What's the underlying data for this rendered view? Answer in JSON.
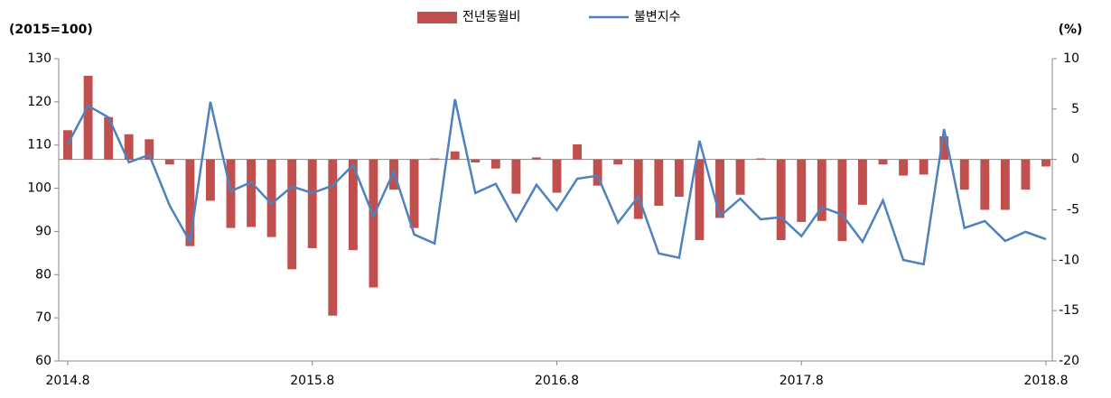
{
  "chart_data": {
    "type": "bar_line",
    "y_label": "(2015=100)",
    "y2_label": "(%)",
    "categories": [
      "2014.8",
      null,
      null,
      null,
      null,
      null,
      null,
      null,
      null,
      null,
      null,
      null,
      "2015.8",
      null,
      null,
      null,
      null,
      null,
      null,
      null,
      null,
      null,
      null,
      null,
      "2016.8",
      null,
      null,
      null,
      null,
      null,
      null,
      null,
      null,
      null,
      null,
      null,
      "2017.8",
      null,
      null,
      null,
      null,
      null,
      null,
      null,
      null,
      null,
      null,
      null,
      "2018.8"
    ],
    "series": [
      {
        "name": "전년동월비",
        "type": "bar",
        "axis": "y2",
        "color": "#c0504d",
        "values": [
          2.9,
          8.3,
          4.2,
          2.5,
          2.0,
          -0.5,
          -8.6,
          -4.1,
          -6.8,
          -6.7,
          -7.7,
          -10.9,
          -8.8,
          -15.5,
          -9.0,
          -12.7,
          -3.0,
          -6.8,
          0.1,
          0.8,
          -0.3,
          -0.9,
          -3.4,
          0.2,
          -3.3,
          1.5,
          -2.6,
          -0.5,
          -5.9,
          -4.6,
          -3.7,
          -8.0,
          -5.8,
          -3.5,
          0.1,
          -8.0,
          -6.2,
          -6.1,
          -8.1,
          -4.5,
          -0.5,
          -1.6,
          -1.5,
          2.3,
          -3.0,
          -5.0,
          -5.0,
          -3.0,
          -0.7
        ]
      },
      {
        "name": "불변지수",
        "type": "line",
        "axis": "y",
        "color": "#4f81bd",
        "values": [
          110.2,
          119.1,
          116.4,
          106,
          107.7,
          96,
          87.6,
          120,
          99.3,
          101.4,
          96.4,
          100.4,
          98.9,
          100.6,
          105.4,
          93.5,
          103.9,
          89.3,
          87.2,
          120.6,
          98.9,
          101,
          92.4,
          100.8,
          94.9,
          102.2,
          102.9,
          92,
          98.1,
          84.9,
          83.9,
          111,
          93.5,
          97.6,
          92.8,
          93.3,
          88.9,
          95.6,
          93.9,
          87.6,
          97.2,
          83.4,
          82.4,
          113.7,
          90.8,
          92.4,
          87.8,
          89.9,
          88.2
        ]
      }
    ],
    "ylim": [
      60,
      130
    ],
    "yticks": [
      60,
      70,
      80,
      90,
      100,
      110,
      120,
      130
    ],
    "y2lim": [
      -20,
      10
    ],
    "y2ticks": [
      -20,
      -15,
      -10,
      -5,
      0,
      5,
      10
    ]
  }
}
